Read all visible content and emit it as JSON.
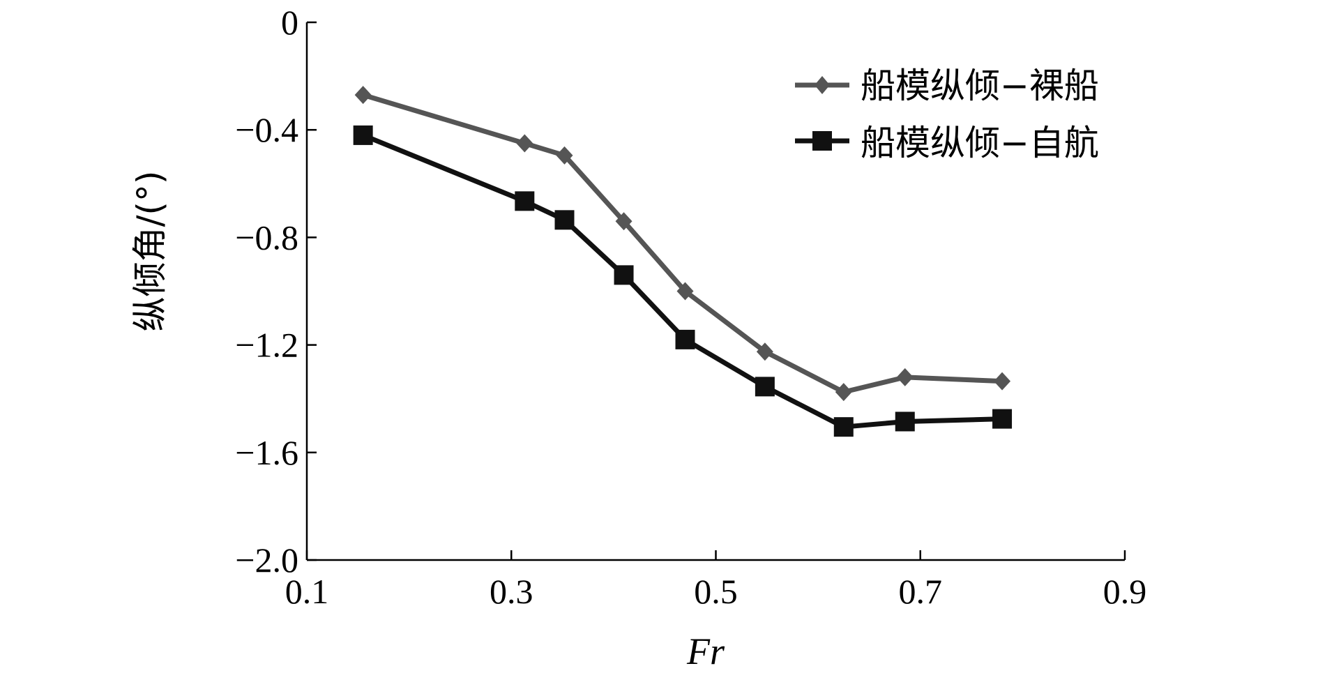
{
  "chart_data": {
    "type": "line",
    "xlabel": "Fr",
    "ylabel": "纵倾角/(°)",
    "xlim": [
      0.1,
      0.9
    ],
    "ylim": [
      -2.0,
      0
    ],
    "xticks": [
      0.1,
      0.3,
      0.5,
      0.7,
      0.9
    ],
    "xtick_labels": [
      "0.1",
      "0.3",
      "0.5",
      "0.7",
      "0.9"
    ],
    "yticks": [
      0,
      -0.4,
      -0.8,
      -1.2,
      -1.6,
      -2.0
    ],
    "ytick_labels": [
      "0",
      "−0.4",
      "−0.8",
      "−1.2",
      "−1.6",
      "−2.0"
    ],
    "grid": false,
    "legend_position": "top-right",
    "series": [
      {
        "name": "船模纵倾−裸船",
        "color": "#555555",
        "marker": "diamond",
        "x": [
          0.155,
          0.313,
          0.352,
          0.41,
          0.47,
          0.548,
          0.625,
          0.685,
          0.78
        ],
        "y": [
          -0.27,
          -0.45,
          -0.495,
          -0.74,
          -1.0,
          -1.225,
          -1.375,
          -1.32,
          -1.335
        ]
      },
      {
        "name": "船模纵倾−自航",
        "color": "#111111",
        "marker": "square",
        "x": [
          0.155,
          0.313,
          0.352,
          0.41,
          0.47,
          0.548,
          0.625,
          0.685,
          0.78
        ],
        "y": [
          -0.42,
          -0.665,
          -0.735,
          -0.94,
          -1.18,
          -1.355,
          -1.505,
          -1.485,
          -1.475
        ]
      }
    ]
  }
}
